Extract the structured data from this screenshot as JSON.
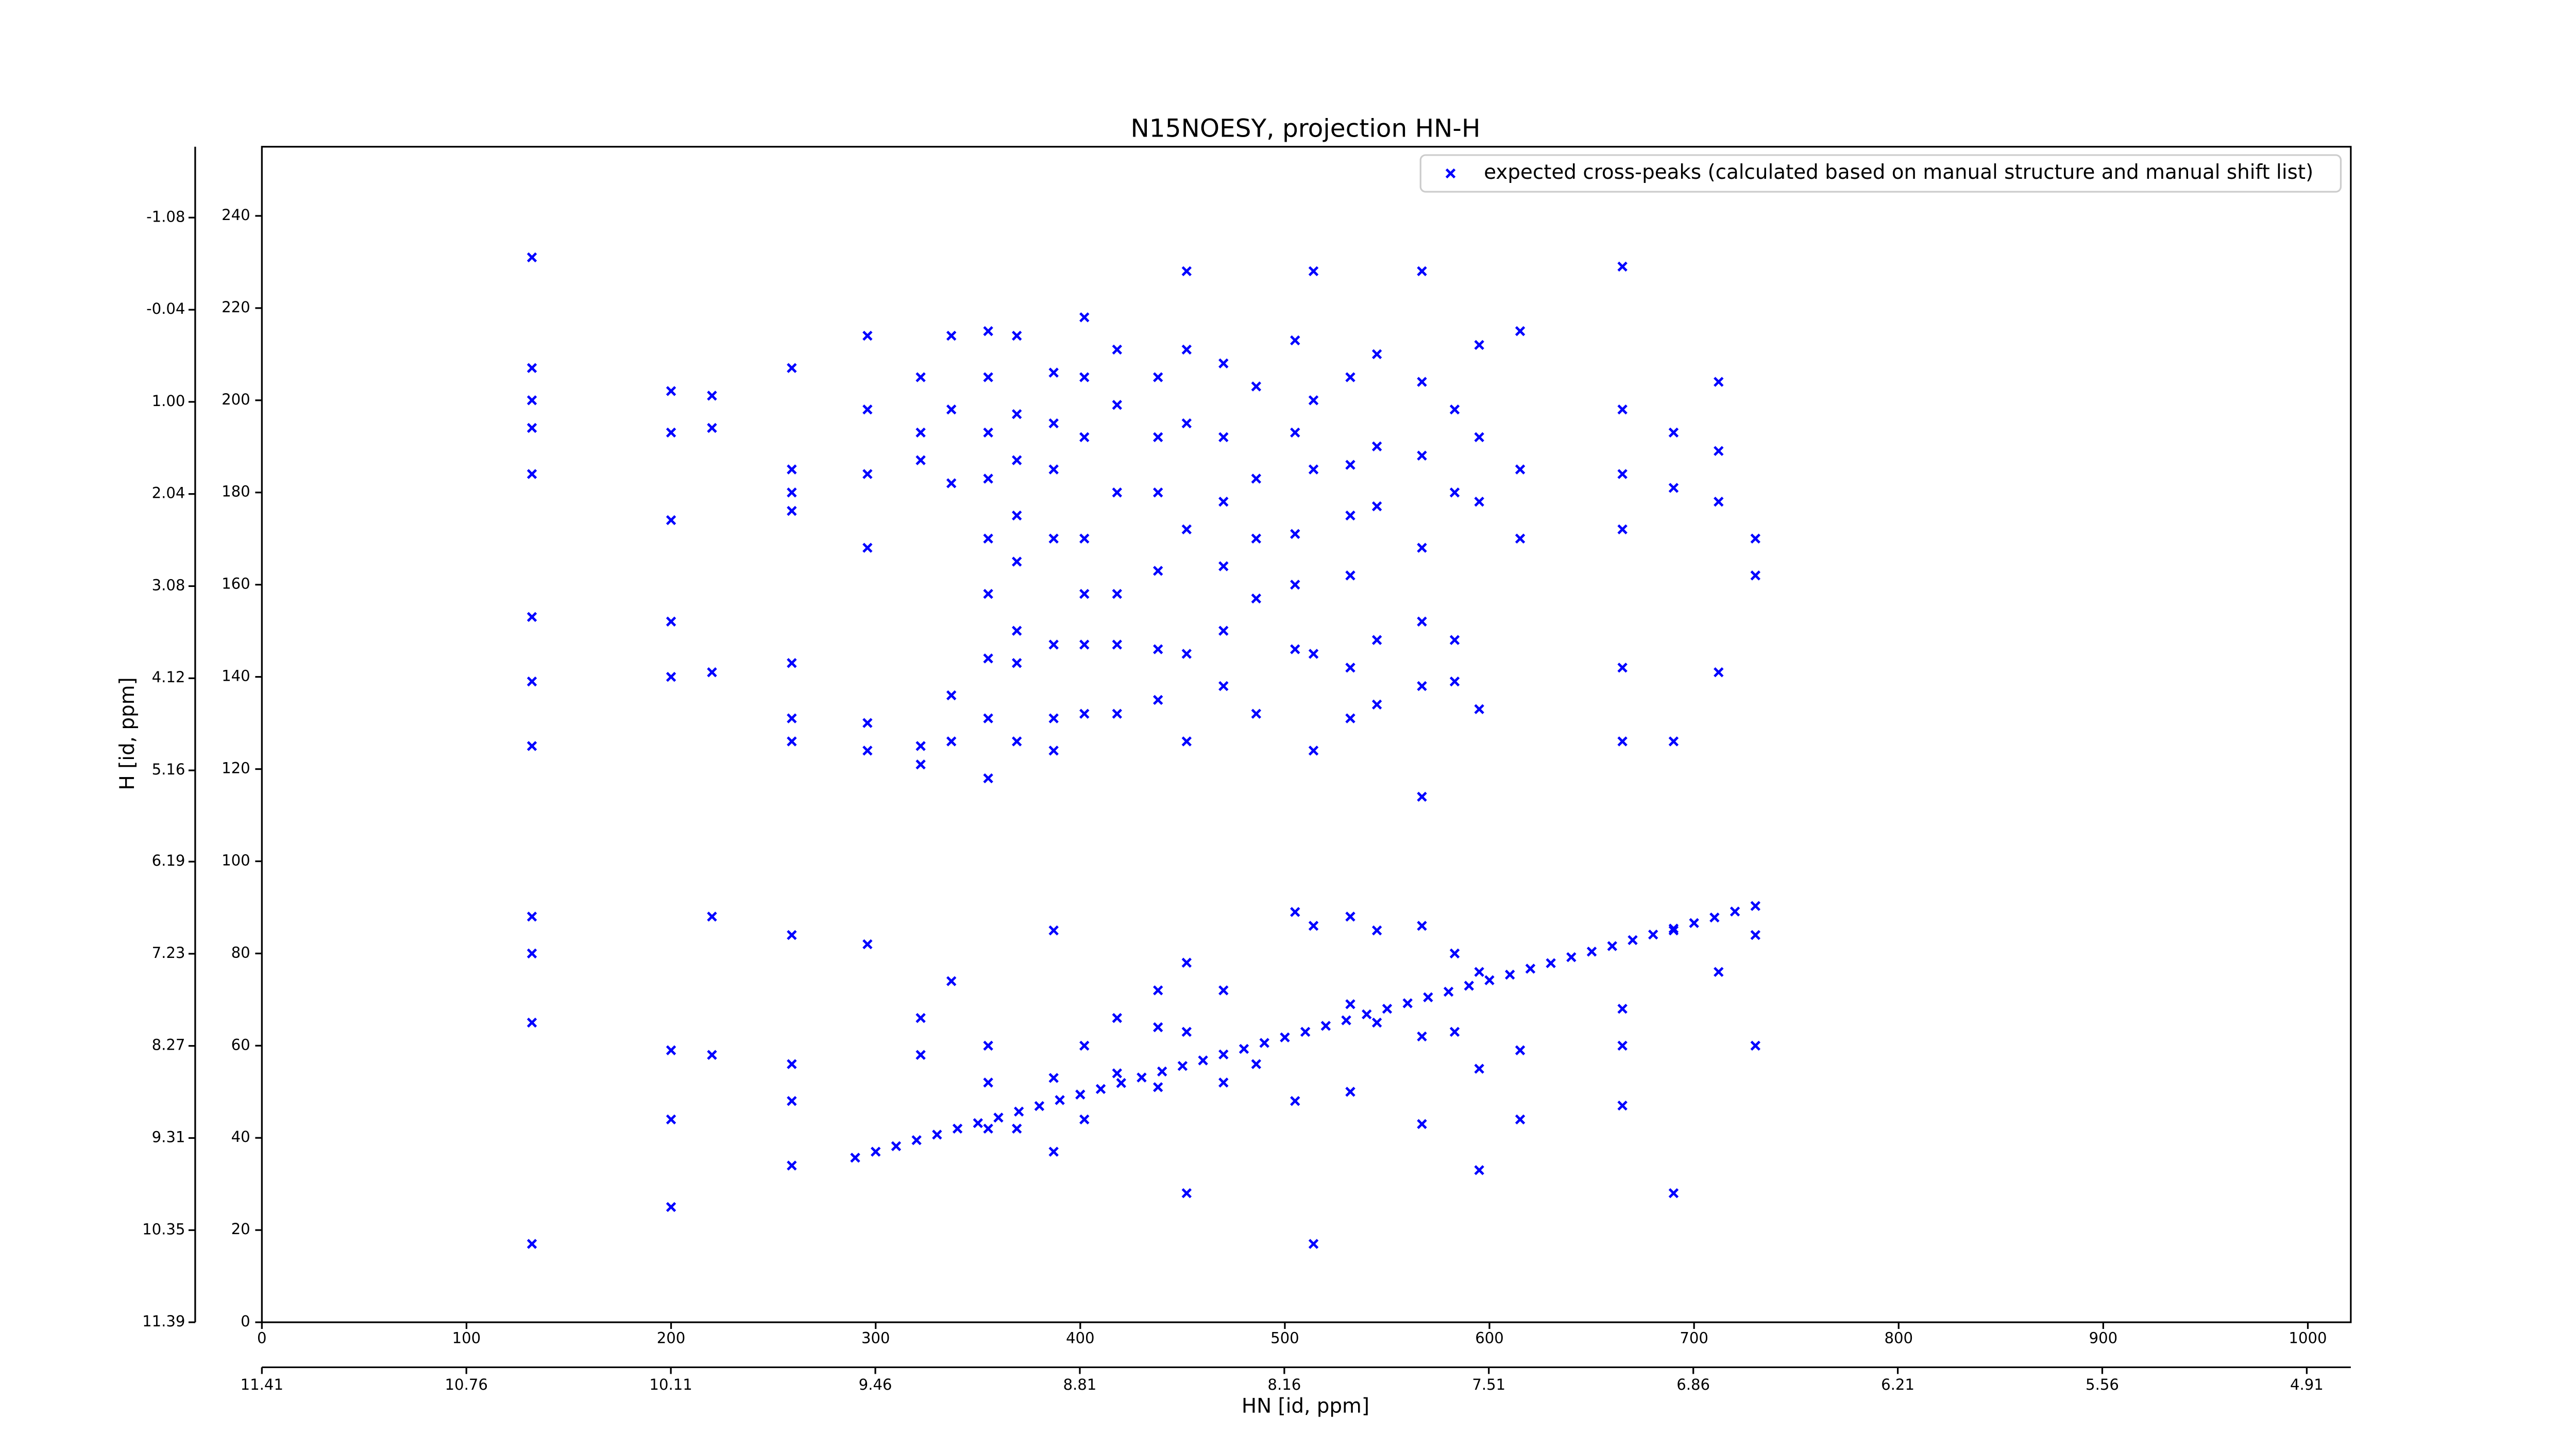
{
  "chart_data": {
    "type": "scatter",
    "title": "N15NOESY, projection HN-H",
    "x_label": "HN [id, ppm]",
    "y_label": "H [id, ppm]",
    "xlim": [
      0,
      1021
    ],
    "xticks": [
      0,
      100,
      200,
      300,
      400,
      500,
      600,
      700,
      800,
      900,
      1000
    ],
    "ylim": [
      0,
      255
    ],
    "yticks": [
      0,
      20,
      40,
      60,
      80,
      100,
      120,
      140,
      160,
      180,
      200,
      220,
      240
    ],
    "x2lim": [
      11.41,
      4.77
    ],
    "x2ticks": [
      11.41,
      10.76,
      10.11,
      9.46,
      8.81,
      8.16,
      7.51,
      6.86,
      6.21,
      5.56,
      4.91
    ],
    "y2lim": [
      11.39,
      -1.88
    ],
    "y2ticks": [
      11.39,
      10.35,
      9.31,
      8.27,
      7.23,
      6.19,
      5.16,
      4.12,
      3.08,
      2.04,
      1.0,
      -0.04,
      -1.08
    ],
    "legend": "upper right",
    "series": [
      {
        "name": "expected cross-peaks (calculated based on manual structure and manual shift list)",
        "color": "#0000ff",
        "x": [
          132,
          132,
          132,
          132,
          132,
          132,
          132,
          132,
          132,
          132,
          132,
          132,
          200,
          200,
          200,
          200,
          200,
          200,
          200,
          200,
          220,
          220,
          220,
          220,
          220,
          259,
          259,
          259,
          259,
          259,
          259,
          259,
          259,
          259,
          259,
          259,
          296,
          296,
          296,
          296,
          296,
          296,
          296,
          322,
          322,
          322,
          322,
          322,
          322,
          322,
          337,
          337,
          337,
          337,
          337,
          337,
          355,
          355,
          355,
          355,
          355,
          355,
          355,
          355,
          355,
          355,
          355,
          355,
          369,
          369,
          369,
          369,
          369,
          369,
          369,
          369,
          369,
          387,
          387,
          387,
          387,
          387,
          387,
          387,
          387,
          387,
          387,
          402,
          402,
          402,
          402,
          402,
          402,
          402,
          402,
          402,
          418,
          418,
          418,
          418,
          418,
          418,
          418,
          418,
          438,
          438,
          438,
          438,
          438,
          438,
          438,
          438,
          438,
          452,
          452,
          452,
          452,
          452,
          452,
          452,
          452,
          452,
          470,
          470,
          470,
          470,
          470,
          470,
          470,
          470,
          486,
          486,
          486,
          486,
          486,
          486,
          505,
          505,
          505,
          505,
          505,
          505,
          505,
          514,
          514,
          514,
          514,
          514,
          514,
          514,
          532,
          532,
          532,
          532,
          532,
          532,
          532,
          532,
          532,
          545,
          545,
          545,
          545,
          545,
          545,
          545,
          567,
          567,
          567,
          567,
          567,
          567,
          567,
          567,
          567,
          567,
          583,
          583,
          583,
          583,
          583,
          583,
          595,
          595,
          595,
          595,
          595,
          595,
          595,
          615,
          615,
          615,
          615,
          615,
          665,
          665,
          665,
          665,
          665,
          665,
          665,
          665,
          665,
          690,
          690,
          690,
          690,
          690,
          712,
          712,
          712,
          712,
          712,
          730,
          730,
          730,
          730,
          290,
          300,
          310,
          320,
          330,
          340,
          350,
          360,
          370,
          380,
          390,
          400,
          410,
          420,
          430,
          440,
          450,
          460,
          470,
          480,
          490,
          500,
          510,
          520,
          530,
          540,
          550,
          560,
          570,
          580,
          590,
          600,
          610,
          620,
          630,
          640,
          650,
          660,
          670,
          680,
          690,
          700,
          710,
          720,
          730
        ],
        "values": [
          231,
          207,
          200,
          194,
          184,
          153,
          139,
          125,
          88,
          80,
          65,
          17,
          202,
          193,
          174,
          152,
          140,
          59,
          44,
          25,
          201,
          194,
          141,
          88,
          58,
          207,
          185,
          180,
          176,
          143,
          131,
          126,
          84,
          56,
          48,
          34,
          214,
          198,
          184,
          168,
          130,
          124,
          82,
          205,
          193,
          187,
          125,
          121,
          66,
          58,
          214,
          198,
          182,
          136,
          126,
          74,
          215,
          205,
          193,
          183,
          170,
          158,
          144,
          131,
          118,
          60,
          52,
          42,
          214,
          197,
          187,
          175,
          165,
          150,
          143,
          126,
          42,
          206,
          195,
          185,
          170,
          147,
          131,
          124,
          85,
          53,
          37,
          218,
          205,
          192,
          170,
          158,
          147,
          132,
          60,
          44,
          211,
          199,
          180,
          158,
          147,
          132,
          66,
          54,
          205,
          192,
          180,
          163,
          146,
          135,
          72,
          64,
          51,
          228,
          211,
          195,
          172,
          145,
          126,
          78,
          63,
          28,
          208,
          192,
          178,
          164,
          150,
          138,
          72,
          52,
          203,
          183,
          170,
          157,
          132,
          56,
          213,
          193,
          171,
          160,
          146,
          89,
          48,
          228,
          200,
          185,
          145,
          124,
          86,
          17,
          205,
          186,
          175,
          162,
          142,
          131,
          88,
          69,
          50,
          210,
          190,
          177,
          148,
          134,
          85,
          65,
          228,
          204,
          188,
          168,
          152,
          138,
          114,
          86,
          62,
          43,
          198,
          180,
          148,
          139,
          80,
          63,
          212,
          192,
          178,
          133,
          76,
          55,
          33,
          215,
          185,
          170,
          59,
          44,
          229,
          198,
          184,
          172,
          142,
          126,
          68,
          60,
          47,
          193,
          181,
          126,
          85,
          28,
          204,
          189,
          178,
          141,
          76,
          170,
          162,
          84,
          60,
          35.7,
          37,
          38.2,
          39.5,
          40.7,
          42,
          43.2,
          44.4,
          45.7,
          46.9,
          48.2,
          49.4,
          50.6,
          51.9,
          53.1,
          54.4,
          55.6,
          56.8,
          58.1,
          59.3,
          60.6,
          61.8,
          63,
          64.3,
          65.5,
          66.8,
          68,
          69.2,
          70.5,
          71.7,
          73,
          74.2,
          75.4,
          76.7,
          77.9,
          79.2,
          80.4,
          81.6,
          82.9,
          84.1,
          85.4,
          86.6,
          87.8,
          89.1,
          90.3
        ]
      }
    ]
  }
}
